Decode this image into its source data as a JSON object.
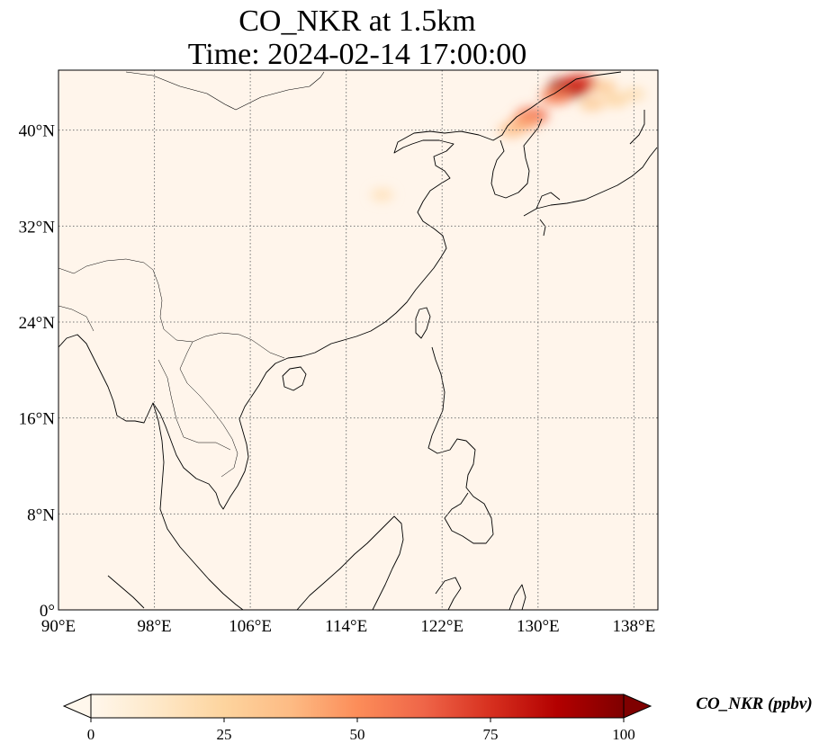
{
  "title": {
    "line1": "CO_NKR at 1.5km",
    "line2": "Time: 2024-02-14 17:00:00"
  },
  "map": {
    "extent": {
      "lon": [
        90,
        140
      ],
      "lat": [
        0,
        45
      ]
    },
    "lon_ticks": [
      "90°E",
      "98°E",
      "106°E",
      "114°E",
      "122°E",
      "130°E",
      "138°E"
    ],
    "lat_ticks": [
      "0°",
      "8°N",
      "16°N",
      "24°N",
      "32°N",
      "40°N"
    ],
    "lon_values": [
      90,
      98,
      106,
      114,
      122,
      130,
      138
    ],
    "lat_values": [
      0,
      8,
      16,
      24,
      32,
      40
    ],
    "gridlines": true,
    "background_color": "#fff5eb",
    "coastline_color": "#000000"
  },
  "colorbar": {
    "label": "CO_NKR (ppbv)",
    "ticks": [
      "0",
      "25",
      "50",
      "75",
      "100"
    ],
    "range": [
      0,
      100
    ],
    "extend": "both",
    "colormap": "OrRd",
    "stops": [
      "#fff7ec",
      "#fee8c8",
      "#fdd49e",
      "#fdbb84",
      "#fc8d59",
      "#ef6548",
      "#d7301f",
      "#b30000",
      "#7f0000"
    ]
  },
  "plumes": [
    {
      "lon": 132.5,
      "lat": 43.5,
      "value": 95
    },
    {
      "lon": 133.5,
      "lat": 43.9,
      "value": 75
    },
    {
      "lon": 131.5,
      "lat": 42.8,
      "value": 55
    },
    {
      "lon": 129.5,
      "lat": 41.2,
      "value": 60
    },
    {
      "lon": 128.8,
      "lat": 40.6,
      "value": 45
    },
    {
      "lon": 127.8,
      "lat": 40.0,
      "value": 35
    },
    {
      "lon": 134.5,
      "lat": 42.2,
      "value": 30
    },
    {
      "lon": 136.5,
      "lat": 42.5,
      "value": 25
    },
    {
      "lon": 138.0,
      "lat": 43.0,
      "value": 20
    },
    {
      "lon": 135.5,
      "lat": 43.6,
      "value": 30
    },
    {
      "lon": 117.0,
      "lat": 34.6,
      "value": 18
    }
  ]
}
